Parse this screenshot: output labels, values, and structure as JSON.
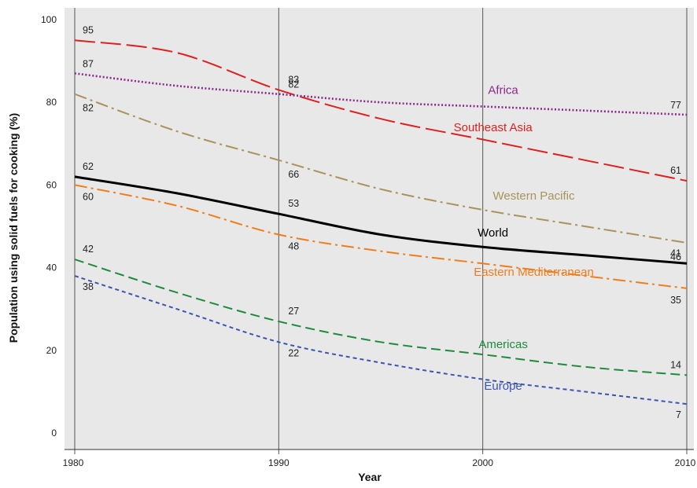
{
  "chart_data": {
    "type": "line",
    "title": "",
    "xlabel": "Year",
    "ylabel": "Population using solid fuels for cooking (%)",
    "xlim": [
      1980,
      2010
    ],
    "ylim": [
      0,
      100
    ],
    "x_ticks": [
      "1980",
      "1990",
      "2000",
      "2010"
    ],
    "y_ticks": [
      "0",
      "20",
      "40",
      "60",
      "80",
      "100"
    ],
    "grid": false,
    "background": "#e8e8e8",
    "x": [
      1980,
      1985,
      1990,
      1995,
      2000,
      2005,
      2010
    ],
    "series": [
      {
        "name": "Southeast Asia",
        "color": "#e0201f",
        "dash": "long-dash",
        "values": [
          95,
          92,
          83,
          76,
          71,
          66,
          61
        ],
        "labels": [
          {
            "x": 1980,
            "text": "95"
          },
          {
            "x": 1990,
            "text": "83"
          },
          {
            "x": 2010,
            "text": "61"
          }
        ]
      },
      {
        "name": "Africa",
        "color": "#8b2a8b",
        "dash": "dotted",
        "values": [
          87,
          84,
          82,
          80,
          79,
          78,
          77
        ],
        "labels": [
          {
            "x": 1980,
            "text": "87"
          },
          {
            "x": 1990,
            "text": "82"
          },
          {
            "x": 2010,
            "text": "77"
          }
        ]
      },
      {
        "name": "Western Pacific",
        "color": "#a8935a",
        "dash": "dash-dot",
        "values": [
          82,
          73,
          66,
          59,
          54,
          50,
          46
        ],
        "labels": [
          {
            "x": 1980,
            "text": "82"
          },
          {
            "x": 1990,
            "text": "66"
          },
          {
            "x": 2010,
            "text": "46"
          }
        ]
      },
      {
        "name": "World",
        "color": "#000000",
        "dash": "solid",
        "values": [
          62,
          58,
          53,
          48,
          45,
          43,
          41
        ],
        "labels": [
          {
            "x": 1980,
            "text": "62"
          },
          {
            "x": 1990,
            "text": "53"
          },
          {
            "x": 2010,
            "text": "41"
          }
        ]
      },
      {
        "name": "Eastern Mediterranean",
        "color": "#f07d1c",
        "dash": "dash-dot",
        "values": [
          60,
          55,
          48,
          44,
          41,
          38,
          35
        ],
        "labels": [
          {
            "x": 1980,
            "text": "60"
          },
          {
            "x": 1990,
            "text": "48"
          },
          {
            "x": 2010,
            "text": "35"
          }
        ]
      },
      {
        "name": "Americas",
        "color": "#1f8a3e",
        "dash": "dashed",
        "values": [
          42,
          34,
          27,
          22,
          19,
          16,
          14
        ],
        "labels": [
          {
            "x": 1980,
            "text": "42"
          },
          {
            "x": 1990,
            "text": "27"
          },
          {
            "x": 2010,
            "text": "14"
          }
        ]
      },
      {
        "name": "Europe",
        "color": "#3a55b0",
        "dash": "short-dash",
        "values": [
          38,
          30,
          22,
          17,
          13,
          10,
          7
        ],
        "labels": [
          {
            "x": 1980,
            "text": "38"
          },
          {
            "x": 1990,
            "text": "22"
          },
          {
            "x": 2010,
            "text": "7"
          }
        ]
      }
    ]
  }
}
